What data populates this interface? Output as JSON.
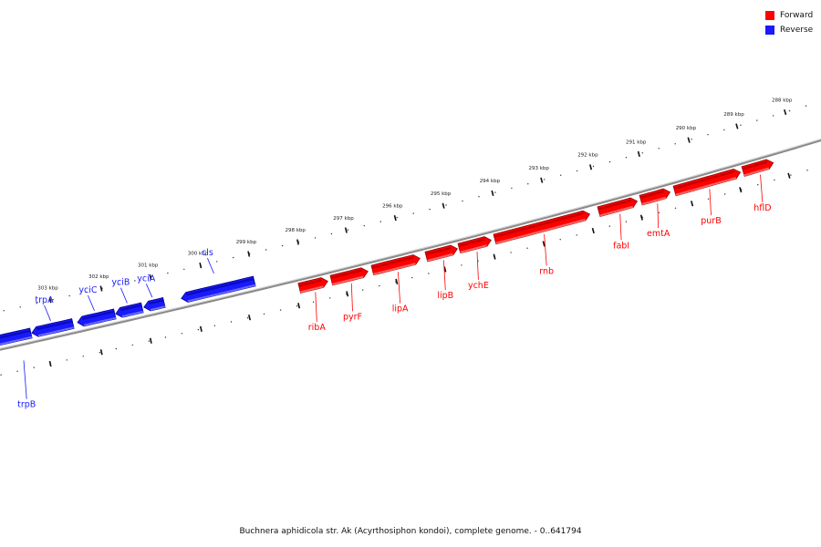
{
  "legend": {
    "forward": {
      "label": "Forward",
      "color": "#ff0000"
    },
    "reverse": {
      "label": "Reverse",
      "color": "#1a1aff"
    }
  },
  "caption": "Buchnera aphidicola str. Ak (Acyrthosiphon kondoi), complete genome. - 0..641794",
  "ticks": [
    "303 kbp",
    "302 kbp",
    "301 kbp",
    "300 kbp",
    "299 kbp",
    "298 kbp",
    "297 kbp",
    "296 kbp",
    "295 kbp",
    "294 kbp",
    "293 kbp",
    "292 kbp",
    "291 kbp",
    "290 kbp",
    "289 kbp",
    "288 kbp"
  ],
  "genes": [
    {
      "name": "trpB",
      "strand": "reverse"
    },
    {
      "name": "trpA",
      "strand": "reverse"
    },
    {
      "name": "yciC",
      "strand": "reverse"
    },
    {
      "name": "yciB",
      "strand": "reverse"
    },
    {
      "name": "yciA",
      "strand": "reverse"
    },
    {
      "name": "cls",
      "strand": "reverse"
    },
    {
      "name": "ribA",
      "strand": "forward"
    },
    {
      "name": "pyrF",
      "strand": "forward"
    },
    {
      "name": "lipA",
      "strand": "forward"
    },
    {
      "name": "lipB",
      "strand": "forward"
    },
    {
      "name": "ychE",
      "strand": "forward"
    },
    {
      "name": "rnb",
      "strand": "forward"
    },
    {
      "name": "fabI",
      "strand": "forward"
    },
    {
      "name": "emtA",
      "strand": "forward"
    },
    {
      "name": "purB",
      "strand": "forward"
    },
    {
      "name": "hflD",
      "strand": "forward"
    }
  ]
}
